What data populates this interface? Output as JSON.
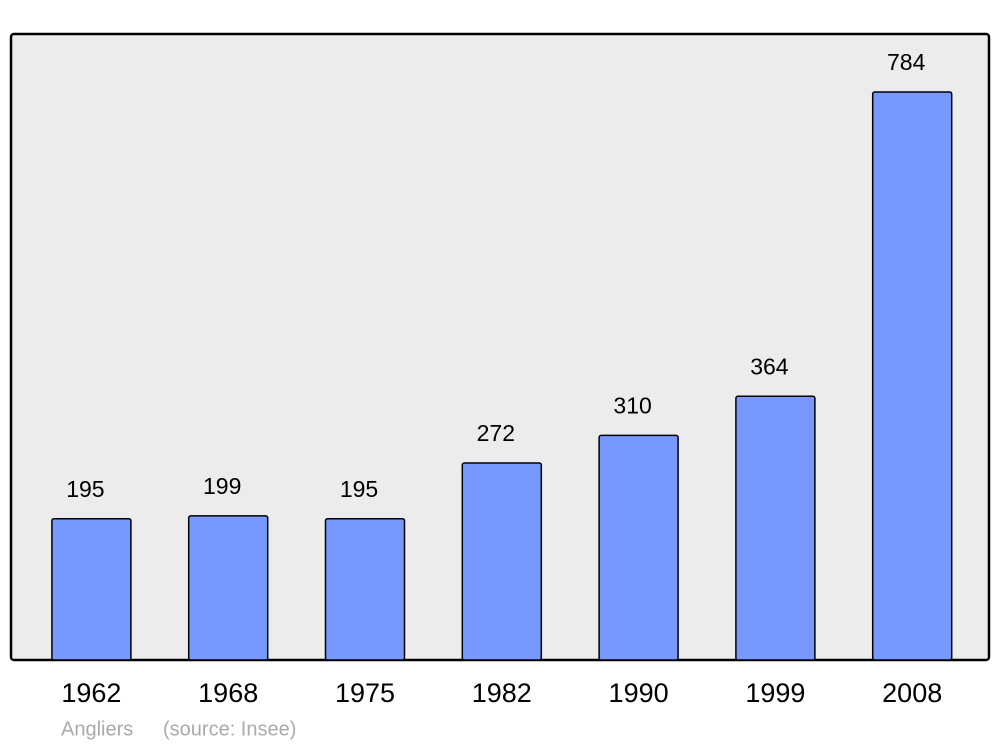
{
  "chart_data": {
    "type": "bar",
    "categories": [
      "1962",
      "1968",
      "1975",
      "1982",
      "1990",
      "1999",
      "2008"
    ],
    "values": [
      195,
      199,
      195,
      272,
      310,
      364,
      784
    ],
    "color": "#7799ff",
    "caption": "Angliers",
    "source": "(source: Insee)"
  }
}
